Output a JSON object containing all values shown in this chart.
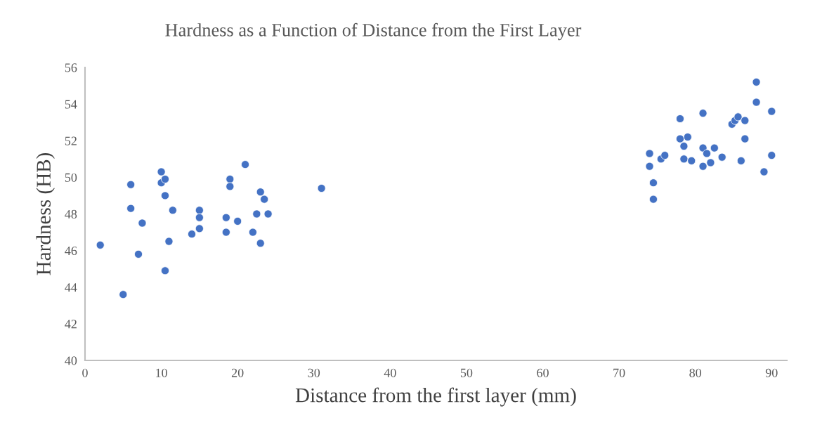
{
  "chart_data": {
    "type": "scatter",
    "title": "Hardness as a Function of Distance from the First Layer",
    "xlabel": "Distance from the first layer (mm)",
    "ylabel": "Hardness (HB)",
    "xlim": [
      0,
      92
    ],
    "xticks": [
      0,
      10,
      20,
      30,
      40,
      50,
      60,
      70,
      80,
      90
    ],
    "ylim": [
      40,
      56
    ],
    "yticks": [
      40,
      42,
      44,
      46,
      48,
      50,
      52,
      54,
      56
    ],
    "grid": false,
    "legend": false,
    "marker": "circle",
    "series": [
      {
        "color": "#4472c4",
        "x": [
          2,
          5,
          6,
          6,
          7,
          7.5,
          10,
          10,
          10.5,
          10.5,
          10.5,
          11,
          11.5,
          14,
          15,
          15,
          15,
          18.5,
          18.5,
          19,
          19,
          20,
          21,
          22,
          22.5,
          23,
          23,
          23.5,
          24,
          31,
          74,
          74,
          74.5,
          74.5,
          75.5,
          76,
          78,
          78,
          78.5,
          78.5,
          79,
          79.5,
          81,
          81,
          81,
          81.5,
          82,
          82.5,
          83.5,
          84.8,
          85.2,
          85.6,
          86,
          86.5,
          86.5,
          88,
          88,
          89,
          90,
          90
        ],
        "values": [
          46.3,
          43.6,
          49.6,
          48.3,
          45.8,
          47.5,
          50.3,
          49.7,
          49.9,
          49.0,
          44.9,
          46.5,
          48.2,
          46.9,
          48.2,
          47.8,
          47.2,
          47.8,
          47.0,
          49.9,
          49.5,
          47.6,
          50.7,
          47.0,
          48.0,
          49.2,
          46.4,
          48.8,
          48.0,
          49.4,
          51.3,
          50.6,
          49.7,
          48.8,
          51.0,
          51.2,
          53.2,
          52.1,
          51.7,
          51.0,
          52.2,
          50.9,
          53.5,
          51.6,
          50.6,
          51.3,
          50.8,
          51.6,
          51.1,
          52.9,
          53.1,
          53.3,
          50.9,
          53.1,
          52.1,
          55.2,
          54.1,
          50.3,
          53.6,
          51.2
        ]
      }
    ]
  }
}
